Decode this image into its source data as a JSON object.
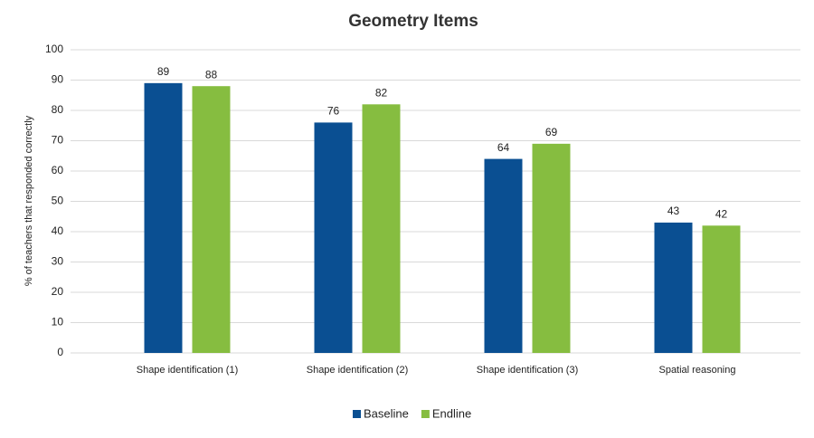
{
  "chart_data": {
    "type": "bar",
    "title": "Geometry Items",
    "y_label": "% of teachers that responded correctly",
    "categories": [
      "Shape identification (1)",
      "Shape identification (2)",
      "Shape identification (3)",
      "Spatial reasoning"
    ],
    "series": [
      {
        "name": "Baseline",
        "color": "#0a4f92",
        "values": [
          89,
          76,
          64,
          43
        ]
      },
      {
        "name": "Endline",
        "color": "#86bd40",
        "values": [
          88,
          82,
          69,
          42
        ]
      }
    ],
    "ylim": [
      0,
      100
    ],
    "yticks": [
      0,
      10,
      20,
      30,
      40,
      50,
      60,
      70,
      80,
      90,
      100
    ],
    "grid": true,
    "legend": "bottom"
  }
}
